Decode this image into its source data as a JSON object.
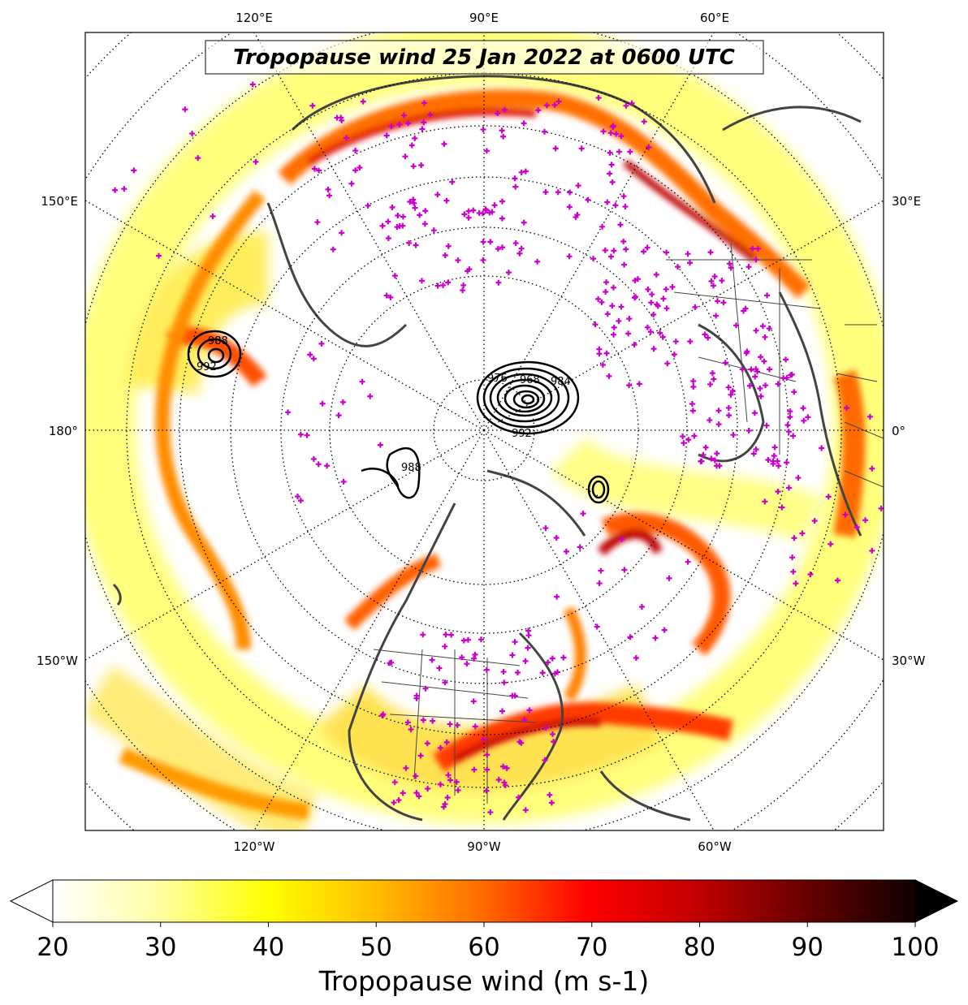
{
  "title": "Tropopause wind 25 Jan 2022 at 0600 UTC",
  "map": {
    "projection": "north polar stereographic",
    "longitude_labels_top": [
      "120°E",
      "90°E",
      "60°E"
    ],
    "longitude_labels_bottom": [
      "120°W",
      "90°W",
      "60°W"
    ],
    "longitude_labels_left": [
      "150°E",
      "180°",
      "150°W"
    ],
    "longitude_labels_right": [
      "30°E",
      "0°",
      "30°W"
    ],
    "graticule": "dotted",
    "station_marker_color": "#cc00cc",
    "coastline_color": "#444444",
    "pressure_contour_labels": [
      "988",
      "992",
      "968",
      "976",
      "984",
      "992",
      "988"
    ]
  },
  "colorbar": {
    "label": "Tropopause wind (m s-1)",
    "min": 20,
    "max": 100,
    "ticks": [
      "20",
      "30",
      "40",
      "50",
      "60",
      "70",
      "80",
      "90",
      "100"
    ],
    "extend": "both",
    "colormap": "hot_r"
  }
}
